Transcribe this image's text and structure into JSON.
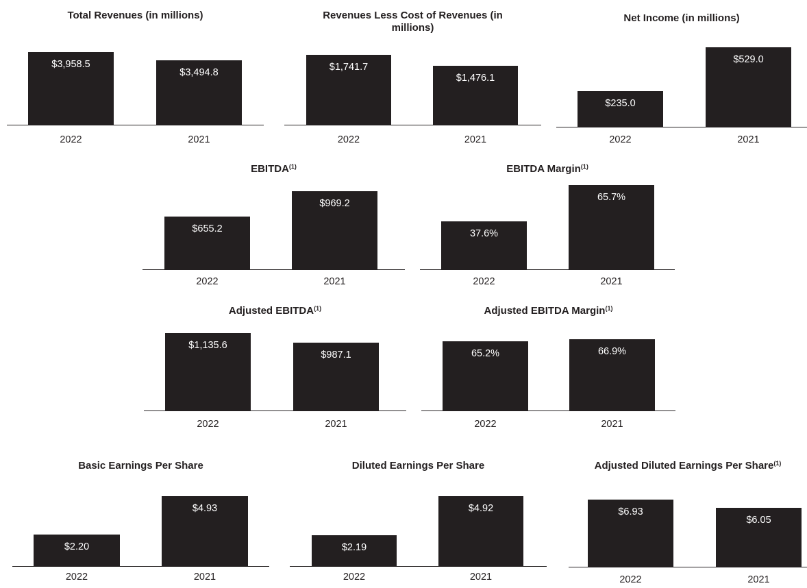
{
  "colors": {
    "bar": "#231f20",
    "bar_label": "#ffffff",
    "text": "#231f20",
    "background": "#ffffff"
  },
  "chart_data": [
    {
      "type": "bar",
      "title": "Total Revenues (in millions)",
      "footnote": "",
      "categories": [
        "2022",
        "2021"
      ],
      "values": [
        3958.5,
        3494.8
      ],
      "value_labels": [
        "$3,958.5",
        "$3,494.8"
      ],
      "ylim": [
        0,
        4100
      ]
    },
    {
      "type": "bar",
      "title": "Revenues Less Cost of Revenues (in millions)",
      "footnote": "",
      "categories": [
        "2022",
        "2021"
      ],
      "values": [
        1741.7,
        1476.1
      ],
      "value_labels": [
        "$1,741.7",
        "$1,476.1"
      ],
      "ylim": [
        0,
        1880
      ]
    },
    {
      "type": "bar",
      "title": "Net Income (in millions)",
      "footnote": "",
      "categories": [
        "2022",
        "2021"
      ],
      "values": [
        235.0,
        529.0
      ],
      "value_labels": [
        "$235.0",
        "$529.0"
      ],
      "ylim": [
        0,
        532
      ]
    },
    {
      "type": "bar",
      "title": "EBITDA",
      "footnote": "(1)",
      "categories": [
        "2022",
        "2021"
      ],
      "values": [
        655.2,
        969.2
      ],
      "value_labels": [
        "$655.2",
        "$969.2"
      ],
      "ylim": [
        0,
        976
      ]
    },
    {
      "type": "bar",
      "title": "EBITDA Margin",
      "footnote": "(1)",
      "categories": [
        "2022",
        "2021"
      ],
      "values": [
        37.6,
        65.7
      ],
      "value_labels": [
        "37.6%",
        "65.7%"
      ],
      "ylim": [
        0,
        65.7
      ]
    },
    {
      "type": "bar",
      "title": "Adjusted EBITDA",
      "footnote": "(1)",
      "categories": [
        "2022",
        "2021"
      ],
      "values": [
        1135.6,
        987.1
      ],
      "value_labels": [
        "$1,135.6",
        "$987.1"
      ],
      "ylim": [
        0,
        1141
      ]
    },
    {
      "type": "bar",
      "title": "Adjusted EBITDA Margin",
      "footnote": "(1)",
      "categories": [
        "2022",
        "2021"
      ],
      "values": [
        65.2,
        66.9
      ],
      "value_labels": [
        "65.2%",
        "66.9%"
      ],
      "ylim": [
        0,
        73.5
      ]
    },
    {
      "type": "bar",
      "title": "Basic Earnings Per Share",
      "footnote": "",
      "categories": [
        "2022",
        "2021"
      ],
      "values": [
        2.2,
        4.93
      ],
      "value_labels": [
        "$2.20",
        "$4.93"
      ],
      "ylim": [
        0,
        4.93
      ]
    },
    {
      "type": "bar",
      "title": "Diluted Earnings Per Share",
      "footnote": "",
      "categories": [
        "2022",
        "2021"
      ],
      "values": [
        2.19,
        4.92
      ],
      "value_labels": [
        "$2.19",
        "$4.92"
      ],
      "ylim": [
        0,
        4.92
      ]
    },
    {
      "type": "bar",
      "title": "Adjusted Diluted Earnings Per Share",
      "footnote": "(1)",
      "categories": [
        "2022",
        "2021"
      ],
      "values": [
        6.93,
        6.05
      ],
      "value_labels": [
        "$6.93",
        "$6.05"
      ],
      "ylim": [
        0,
        6.93
      ]
    }
  ]
}
